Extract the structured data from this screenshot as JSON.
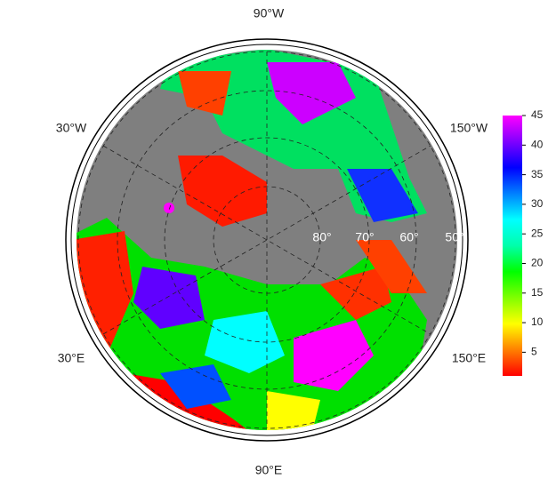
{
  "map": {
    "longitude_labels": [
      "90°W",
      "30°W",
      "150°W",
      "30°E",
      "150°E",
      "90°E"
    ],
    "latitude_labels": [
      "80°",
      "70°",
      "60°",
      "50°"
    ],
    "colorbar": {
      "lim": [
        1,
        45
      ],
      "ticks": [
        5,
        10,
        15,
        20,
        25,
        30,
        35,
        40,
        45
      ],
      "colormap": [
        "#ff0000",
        "#ff8000",
        "#ffff00",
        "#80ff00",
        "#00ff00",
        "#00ffaa",
        "#00ffff",
        "#0080ff",
        "#0000ff",
        "#8000ff",
        "#ff00ff"
      ]
    }
  }
}
